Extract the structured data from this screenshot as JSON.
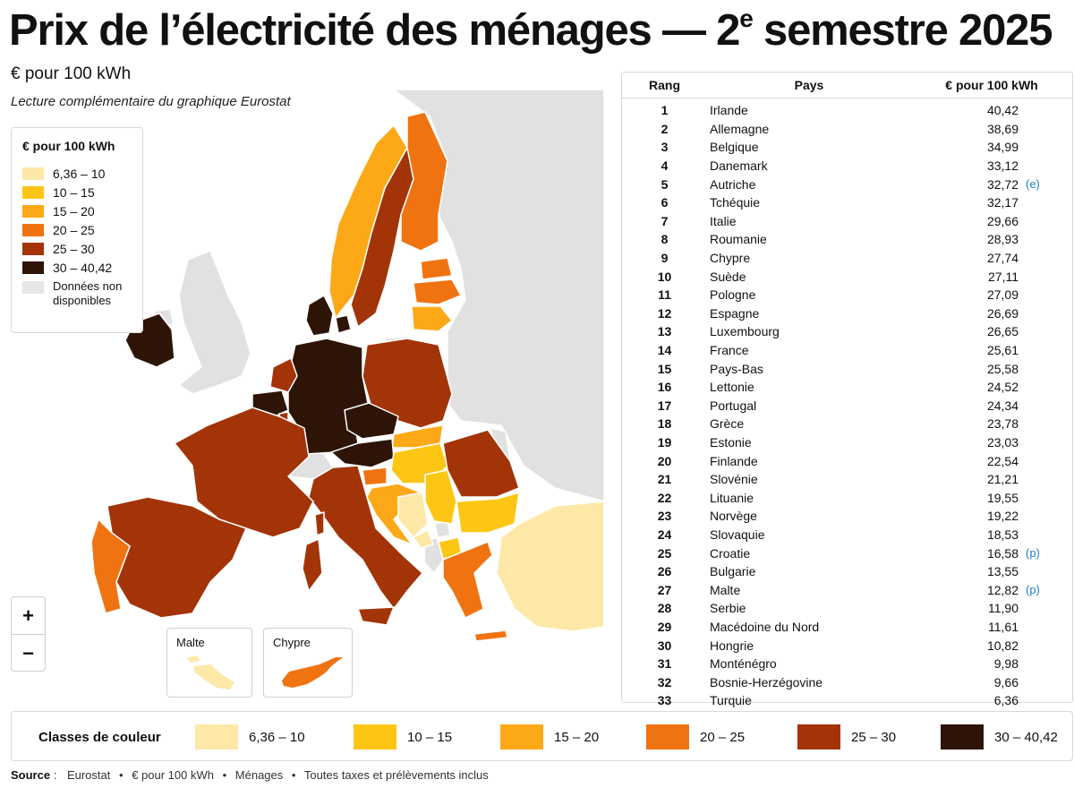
{
  "title": {
    "main": "Prix de l’électricité des ménages — 2",
    "sup": "e",
    "end": " semestre 2025"
  },
  "subtitle": "€ pour 100 kWh",
  "reading": "Lecture complémentaire du graphique Eurostat",
  "legend": {
    "title": "€ pour 100 kWh",
    "items": [
      {
        "label": "6,36 – 10",
        "color": "#fde8a8"
      },
      {
        "label": "10 – 15",
        "color": "#fdc614"
      },
      {
        "label": "15 – 20",
        "color": "#fca817"
      },
      {
        "label": "20 – 25",
        "color": "#f07311"
      },
      {
        "label": "25 – 30",
        "color": "#a33408"
      },
      {
        "label": "30 – 40,42",
        "color": "#2d1406"
      }
    ],
    "na": {
      "label": "Données non disponibles",
      "color": "#e6e6e6"
    }
  },
  "map_colors": {
    "land": "#e1e1e1",
    "sea": "#ffffff",
    "border": "#ffffff"
  },
  "zoom": {
    "in": "+",
    "out": "−"
  },
  "insets": {
    "malta": "Malte",
    "cyprus": "Chypre"
  },
  "table": {
    "headers": {
      "rank": "Rang",
      "country": "Pays",
      "value": "€ pour 100 kWh"
    },
    "rows": [
      {
        "rank": "1",
        "country": "Irlande",
        "value": "40,42",
        "flag": ""
      },
      {
        "rank": "2",
        "country": "Allemagne",
        "value": "38,69",
        "flag": ""
      },
      {
        "rank": "3",
        "country": "Belgique",
        "value": "34,99",
        "flag": ""
      },
      {
        "rank": "4",
        "country": "Danemark",
        "value": "33,12",
        "flag": ""
      },
      {
        "rank": "5",
        "country": "Autriche",
        "value": "32,72",
        "flag": "(e)"
      },
      {
        "rank": "6",
        "country": "Tchéquie",
        "value": "32,17",
        "flag": ""
      },
      {
        "rank": "7",
        "country": "Italie",
        "value": "29,66",
        "flag": ""
      },
      {
        "rank": "8",
        "country": "Roumanie",
        "value": "28,93",
        "flag": ""
      },
      {
        "rank": "9",
        "country": "Chypre",
        "value": "27,74",
        "flag": ""
      },
      {
        "rank": "10",
        "country": "Suède",
        "value": "27,11",
        "flag": ""
      },
      {
        "rank": "11",
        "country": "Pologne",
        "value": "27,09",
        "flag": ""
      },
      {
        "rank": "12",
        "country": "Espagne",
        "value": "26,69",
        "flag": ""
      },
      {
        "rank": "13",
        "country": "Luxembourg",
        "value": "26,65",
        "flag": ""
      },
      {
        "rank": "14",
        "country": "France",
        "value": "25,61",
        "flag": ""
      },
      {
        "rank": "15",
        "country": "Pays-Bas",
        "value": "25,58",
        "flag": ""
      },
      {
        "rank": "16",
        "country": "Lettonie",
        "value": "24,52",
        "flag": ""
      },
      {
        "rank": "17",
        "country": "Portugal",
        "value": "24,34",
        "flag": ""
      },
      {
        "rank": "18",
        "country": "Grèce",
        "value": "23,78",
        "flag": ""
      },
      {
        "rank": "19",
        "country": "Estonie",
        "value": "23,03",
        "flag": ""
      },
      {
        "rank": "20",
        "country": "Finlande",
        "value": "22,54",
        "flag": ""
      },
      {
        "rank": "21",
        "country": "Slovénie",
        "value": "21,21",
        "flag": ""
      },
      {
        "rank": "22",
        "country": "Lituanie",
        "value": "19,55",
        "flag": ""
      },
      {
        "rank": "23",
        "country": "Norvège",
        "value": "19,22",
        "flag": ""
      },
      {
        "rank": "24",
        "country": "Slovaquie",
        "value": "18,53",
        "flag": ""
      },
      {
        "rank": "25",
        "country": "Croatie",
        "value": "16,58",
        "flag": "(p)"
      },
      {
        "rank": "26",
        "country": "Bulgarie",
        "value": "13,55",
        "flag": ""
      },
      {
        "rank": "27",
        "country": "Malte",
        "value": "12,82",
        "flag": "(p)"
      },
      {
        "rank": "28",
        "country": "Serbie",
        "value": "11,90",
        "flag": ""
      },
      {
        "rank": "29",
        "country": "Macédoine du Nord",
        "value": "11,61",
        "flag": ""
      },
      {
        "rank": "30",
        "country": "Hongrie",
        "value": "10,82",
        "flag": ""
      },
      {
        "rank": "31",
        "country": "Monténégro",
        "value": "9,98",
        "flag": ""
      },
      {
        "rank": "32",
        "country": "Bosnie-Herzégovine",
        "value": "9,66",
        "flag": ""
      },
      {
        "rank": "33",
        "country": "Turquie",
        "value": "6,36",
        "flag": ""
      }
    ]
  },
  "class_bar": {
    "title": "Classes de couleur",
    "items": [
      {
        "label": "6,36 – 10",
        "color": "#fde8a8"
      },
      {
        "label": "10 – 15",
        "color": "#fdc614"
      },
      {
        "label": "15 – 20",
        "color": "#fca817"
      },
      {
        "label": "20 – 25",
        "color": "#f07311"
      },
      {
        "label": "25 – 30",
        "color": "#a33408"
      },
      {
        "label": "30 – 40,42",
        "color": "#2d1406"
      }
    ]
  },
  "source": {
    "label": "Source",
    "sep": ":",
    "parts": [
      "Eurostat",
      "€ pour 100 kWh",
      "Ménages",
      "Toutes taxes et prélèvements inclus"
    ]
  }
}
